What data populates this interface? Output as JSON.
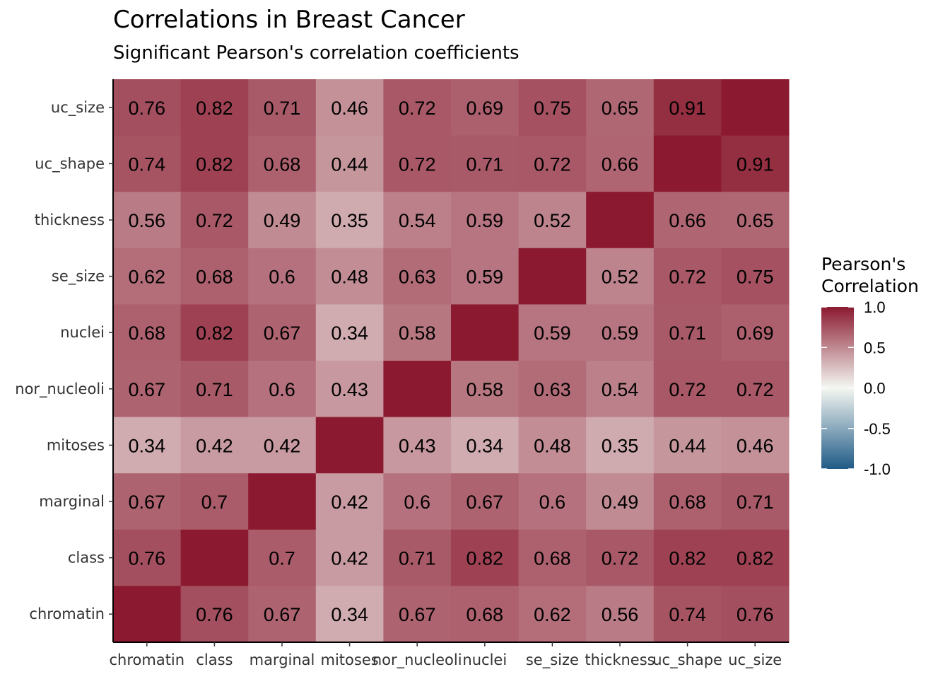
{
  "chart_data": {
    "type": "heatmap",
    "title": "Correlations in Breast Cancer",
    "subtitle": "Significant Pearson's correlation coefficients",
    "x_categories": [
      "chromatin",
      "class",
      "marginal",
      "mitoses",
      "nor_nucleoli",
      "nuclei",
      "se_size",
      "thickness",
      "uc_shape",
      "uc_size"
    ],
    "y_categories": [
      "uc_size",
      "uc_shape",
      "thickness",
      "se_size",
      "nuclei",
      "nor_nucleoli",
      "mitoses",
      "marginal",
      "class",
      "chromatin"
    ],
    "values": [
      [
        0.76,
        0.82,
        0.71,
        0.46,
        0.72,
        0.69,
        0.75,
        0.65,
        0.91,
        null
      ],
      [
        0.74,
        0.82,
        0.68,
        0.44,
        0.72,
        0.71,
        0.72,
        0.66,
        null,
        0.91
      ],
      [
        0.56,
        0.72,
        0.49,
        0.35,
        0.54,
        0.59,
        0.52,
        null,
        0.66,
        0.65
      ],
      [
        0.62,
        0.68,
        0.6,
        0.48,
        0.63,
        0.59,
        null,
        0.52,
        0.72,
        0.75
      ],
      [
        0.68,
        0.82,
        0.67,
        0.34,
        0.58,
        null,
        0.59,
        0.59,
        0.71,
        0.69
      ],
      [
        0.67,
        0.71,
        0.6,
        0.43,
        null,
        0.58,
        0.63,
        0.54,
        0.72,
        0.72
      ],
      [
        0.34,
        0.42,
        0.42,
        null,
        0.43,
        0.34,
        0.48,
        0.35,
        0.44,
        0.46
      ],
      [
        0.67,
        0.7,
        null,
        0.42,
        0.6,
        0.67,
        0.6,
        0.49,
        0.68,
        0.71
      ],
      [
        0.76,
        null,
        0.7,
        0.42,
        0.71,
        0.82,
        0.68,
        0.72,
        0.82,
        0.82
      ],
      [
        null,
        0.76,
        0.67,
        0.34,
        0.67,
        0.68,
        0.62,
        0.56,
        0.74,
        0.76
      ]
    ],
    "diagonal_value": 1.0,
    "legend": {
      "title_lines": [
        "Pearson's",
        "Correlation"
      ],
      "ticks": [
        "1.0",
        "0.5",
        "0.0",
        "-0.5",
        "-1.0"
      ],
      "tick_values": [
        1.0,
        0.5,
        0.0,
        -0.5,
        -1.0
      ],
      "range": [
        -1.0,
        1.0
      ],
      "placement": "right"
    },
    "colors": {
      "high": "#8b1a30",
      "mid": "#f4f7f2",
      "low": "#1f5a86"
    },
    "grid": false
  }
}
